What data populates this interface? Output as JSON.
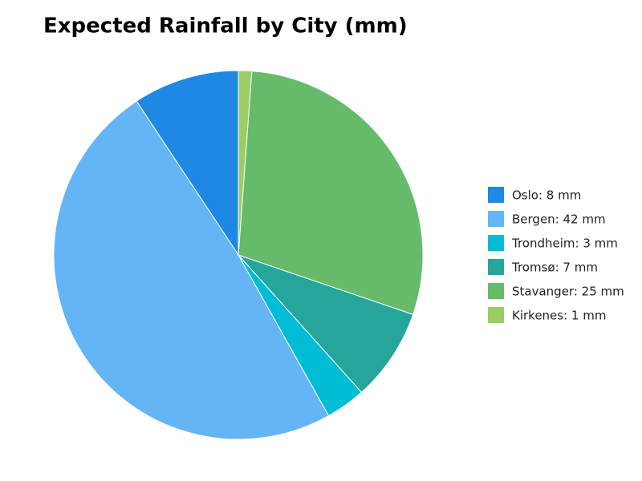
{
  "chart_data": {
    "type": "pie",
    "title": "Expected Rainfall by City (mm)",
    "categories": [
      "Oslo: 8 mm",
      "Bergen: 42 mm",
      "Trondheim: 3 mm",
      "Tromsø: 7 mm",
      "Stavanger: 25 mm",
      "Kirkenes: 1 mm"
    ],
    "values": [
      8,
      42,
      3,
      7,
      25,
      1
    ],
    "colors": [
      "#1e88e5",
      "#64b5f6",
      "#00bcd4",
      "#26a69a",
      "#66bb6a",
      "#9ccc65"
    ],
    "legend": "right"
  }
}
